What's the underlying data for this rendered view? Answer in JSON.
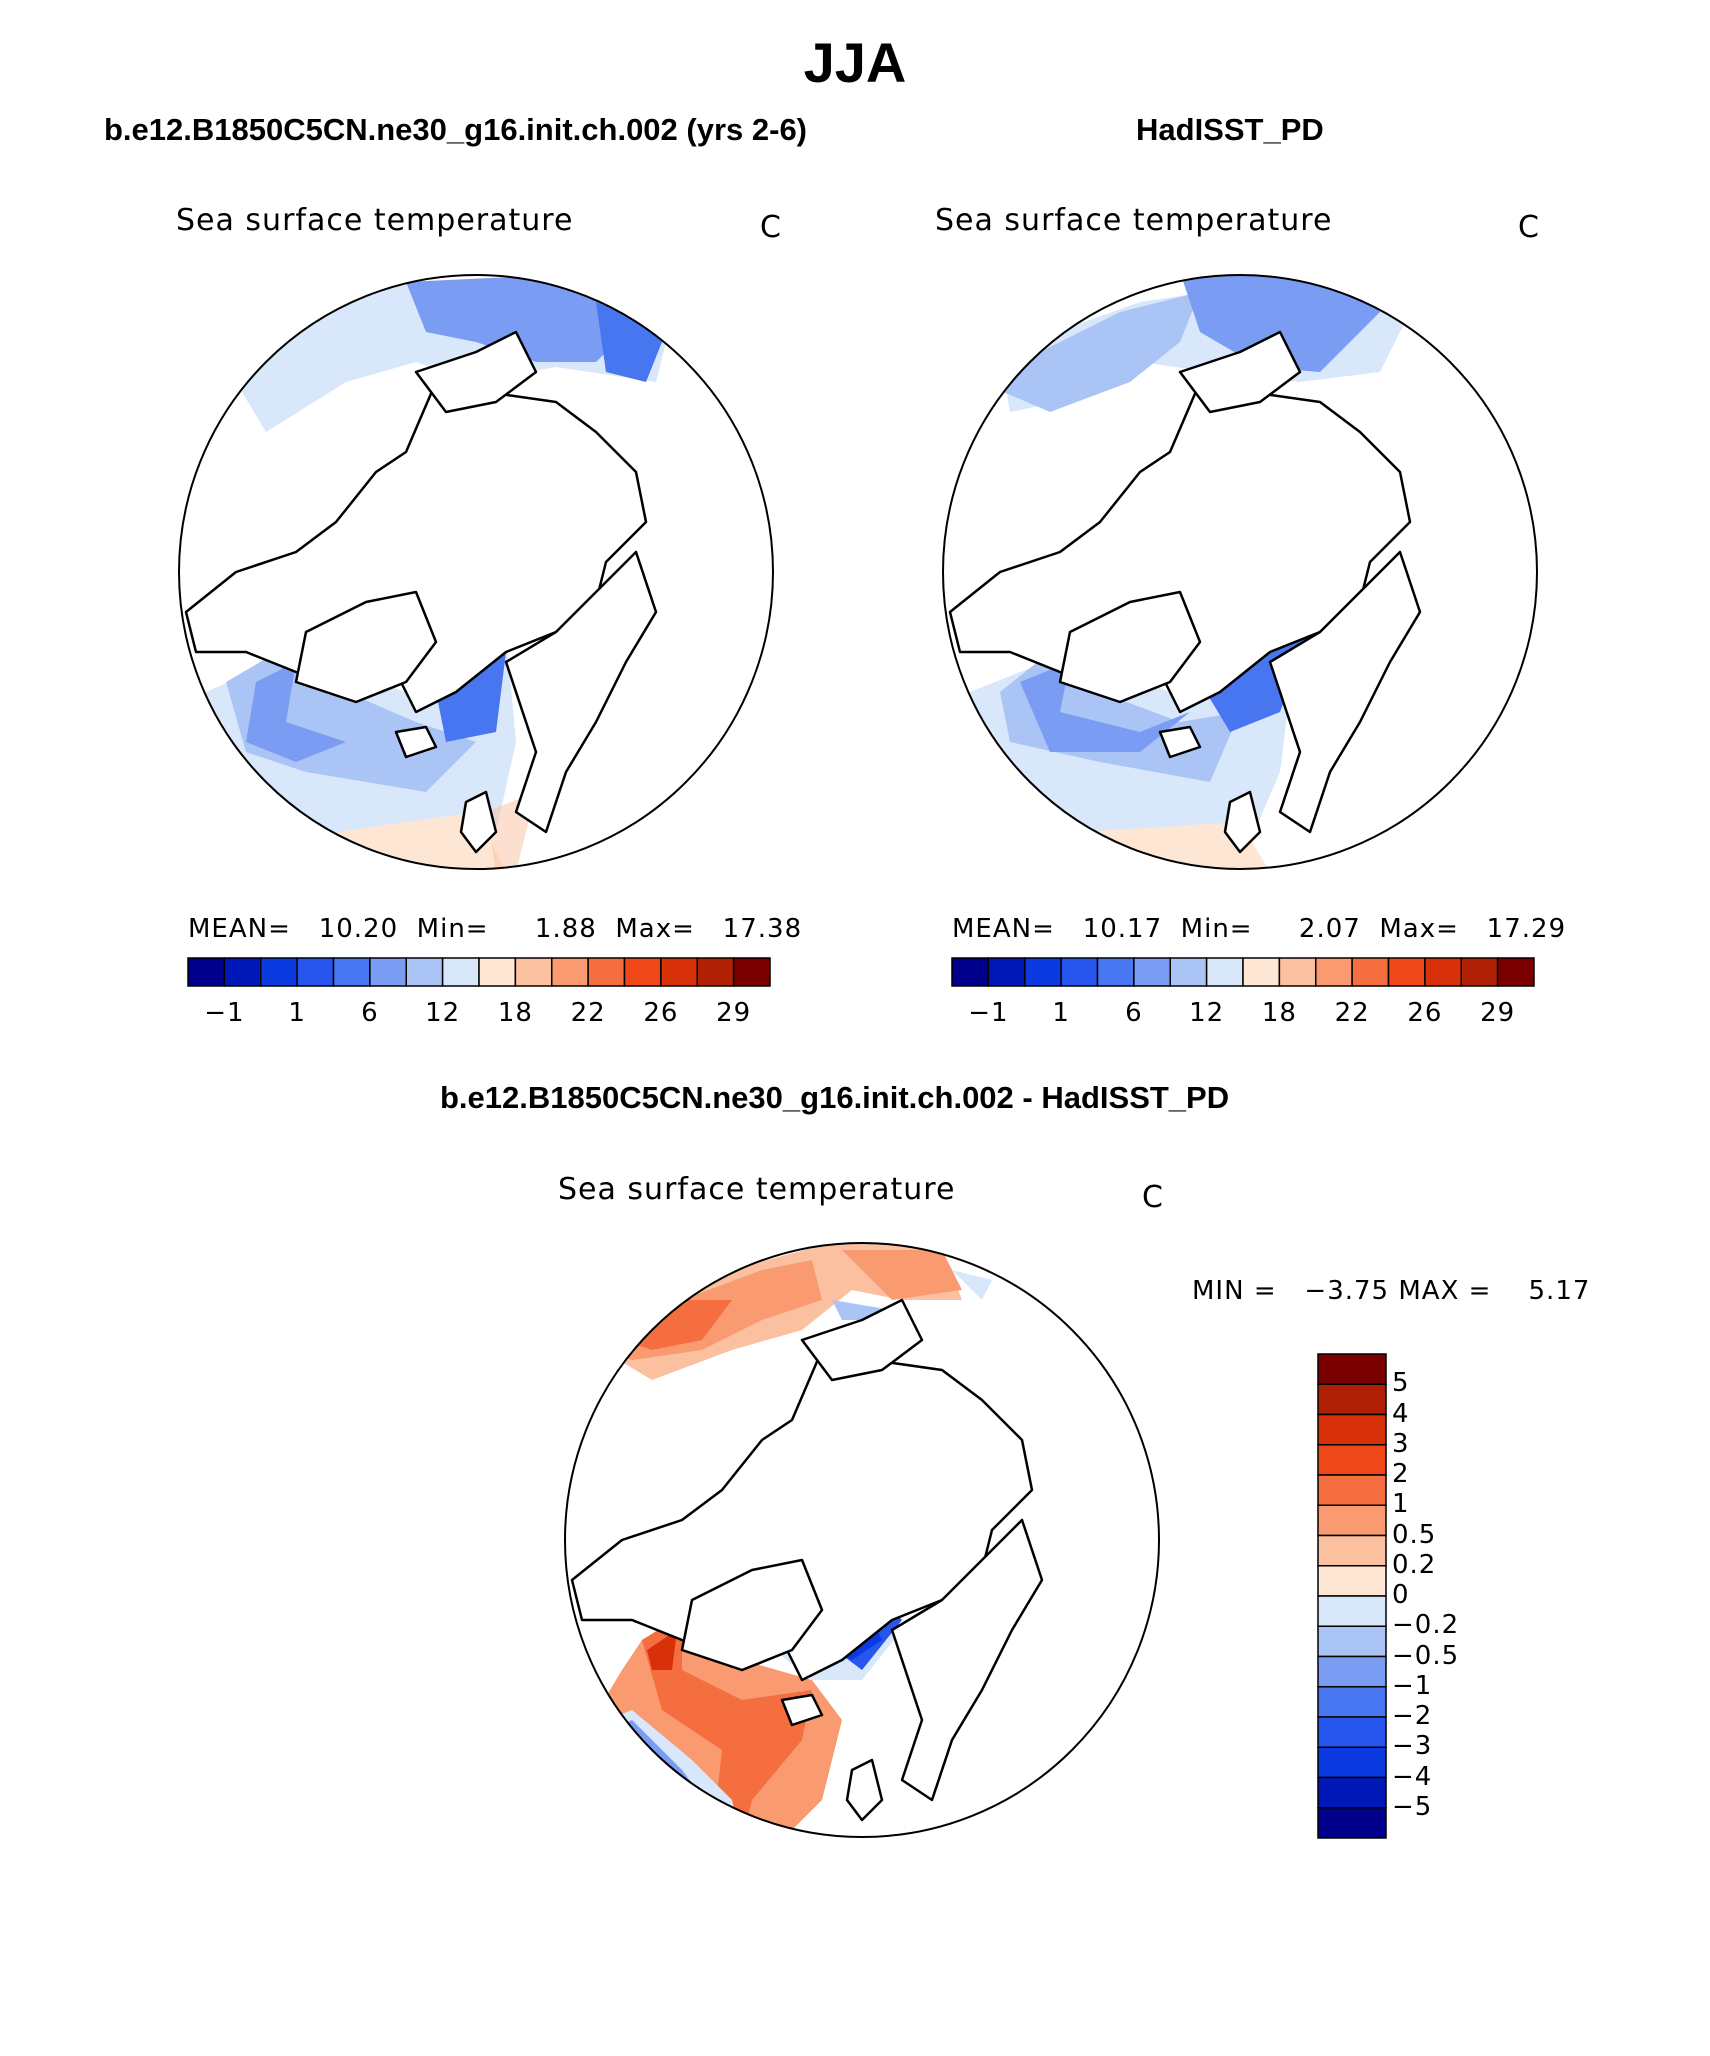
{
  "main_title": "JJA",
  "panels": [
    {
      "title": "b.e12.B1850C5CN.ne30_g16.init.ch.002 (yrs 2-6)",
      "variable": "Sea surface temperature",
      "units": "C",
      "stats": {
        "mean_label": "MEAN=",
        "mean": "10.20",
        "min_label": "Min=",
        "min": "1.88",
        "max_label": "Max=",
        "max": "17.38"
      }
    },
    {
      "title": "HadISST_PD",
      "variable": "Sea surface temperature",
      "units": "C",
      "stats": {
        "mean_label": "MEAN=",
        "mean": "10.17",
        "min_label": "Min=",
        "min": "2.07",
        "max_label": "Max=",
        "max": "17.29"
      }
    }
  ],
  "diff_panel": {
    "title": "b.e12.B1850C5CN.ne30_g16.init.ch.002 - HadISST_PD",
    "variable": "Sea surface temperature",
    "units": "C",
    "minmax": {
      "min_label": "MIN =",
      "min": "−3.75",
      "max_label": "MAX =",
      "max": "5.17"
    }
  },
  "colorbar_abs": {
    "colors": [
      "#00008a",
      "#0018b8",
      "#0a3ae0",
      "#2656ee",
      "#4876f0",
      "#7a9cf2",
      "#aac4f6",
      "#d8e8fa",
      "#fde6d4",
      "#fbc0a0",
      "#f99a70",
      "#f56e40",
      "#f04818",
      "#d83008",
      "#b02004",
      "#7a0000"
    ],
    "tick_labels": [
      "−1",
      "1",
      "6",
      "12",
      "18",
      "22",
      "26",
      "29"
    ]
  },
  "colorbar_diff": {
    "colors": [
      "#7a0000",
      "#b02004",
      "#d83008",
      "#f04818",
      "#f56e40",
      "#f99a70",
      "#fbc0a0",
      "#fde6d4",
      "#d8e8fa",
      "#aac4f6",
      "#7a9cf2",
      "#4876f0",
      "#2656ee",
      "#0a3ae0",
      "#0018b8",
      "#00008a"
    ],
    "tick_labels": [
      "5",
      "4",
      "3",
      "2",
      "1",
      "0.5",
      "0.2",
      "0",
      "−0.2",
      "−0.5",
      "−1",
      "−2",
      "−3",
      "−4",
      "−5"
    ]
  }
}
